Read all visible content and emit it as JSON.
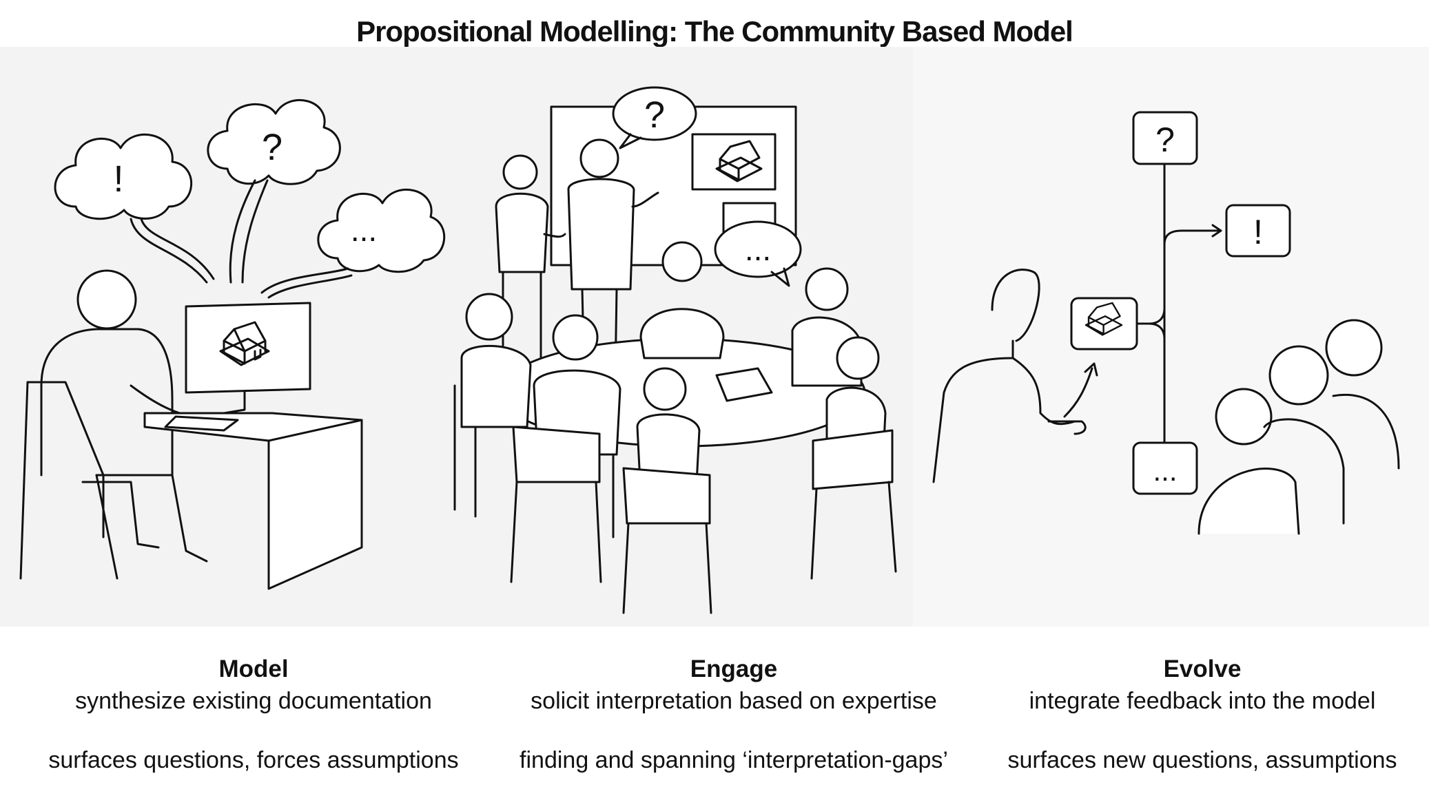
{
  "title": "Propositional Modelling: The Community Based Model",
  "panels": [
    {
      "heading": "Model",
      "line1": "synthesize existing documentation",
      "line2": "surfaces questions, forces assumptions",
      "bubbles": [
        "!",
        "?",
        "..."
      ]
    },
    {
      "heading": "Engage",
      "line1": "solicit interpretation based on expertise",
      "line2": "finding and spanning ‘interpretation-gaps’",
      "bubbles": [
        "?",
        "..."
      ]
    },
    {
      "heading": "Evolve",
      "line1": "integrate feedback into the model",
      "line2": "surfaces new questions, assumptions",
      "nodes": [
        "?",
        "!",
        "..."
      ]
    }
  ],
  "icons": {
    "model": "house-icon"
  }
}
